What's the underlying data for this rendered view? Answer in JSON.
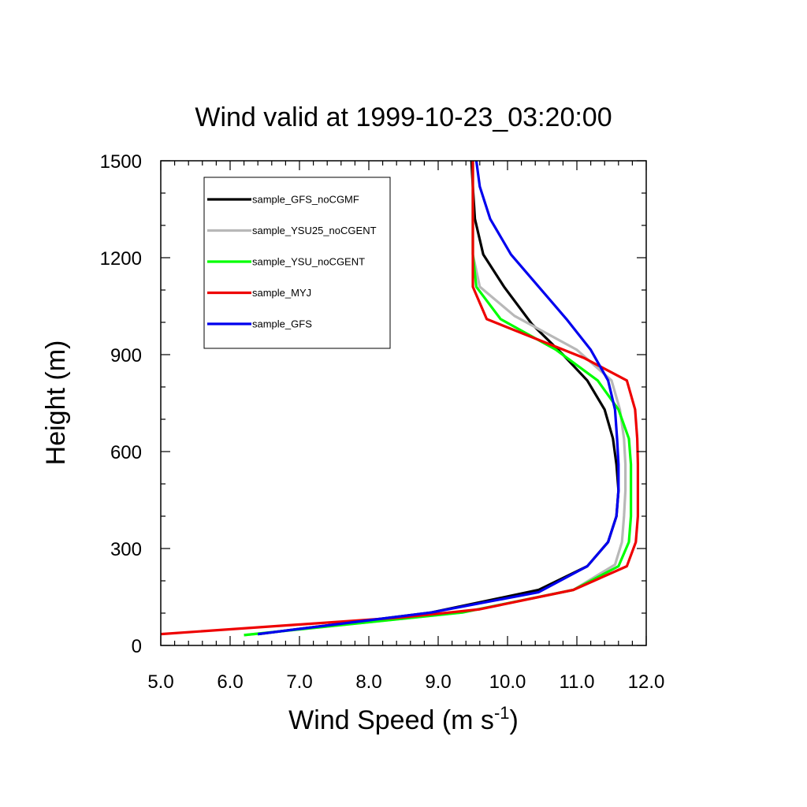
{
  "chart_data": {
    "type": "line",
    "title": "Wind valid at 1999-10-23_03:20:00",
    "xlabel": "Wind Speed (m s",
    "xlabel_superscript": "-1",
    "xlabel_suffix": ")",
    "ylabel": "Height (m)",
    "xlim": [
      5.0,
      12.0
    ],
    "ylim": [
      0,
      1500
    ],
    "x_ticks": [
      "5.0",
      "6.0",
      "7.0",
      "8.0",
      "9.0",
      "10.0",
      "11.0",
      "12.0"
    ],
    "y_ticks": [
      "0",
      "300",
      "600",
      "900",
      "1200",
      "1500"
    ],
    "grid": false,
    "legend_position": "top-left",
    "series": [
      {
        "name": "sample_GFS_noCGMF",
        "color": "#000000",
        "points": [
          [
            6.4,
            35
          ],
          [
            8.9,
            102
          ],
          [
            10.45,
            172
          ],
          [
            11.15,
            245
          ],
          [
            11.45,
            320
          ],
          [
            11.57,
            400
          ],
          [
            11.6,
            480
          ],
          [
            11.57,
            560
          ],
          [
            11.52,
            640
          ],
          [
            11.4,
            730
          ],
          [
            11.15,
            820
          ],
          [
            10.8,
            900
          ],
          [
            10.35,
            995
          ],
          [
            9.95,
            1110
          ],
          [
            9.65,
            1210
          ],
          [
            9.53,
            1320
          ],
          [
            9.5,
            1420
          ],
          [
            9.48,
            1500
          ]
        ]
      },
      {
        "name": "sample_YSU25_noCGENT",
        "color": "#b8b8b8",
        "points": [
          [
            6.2,
            32
          ],
          [
            9.35,
            102
          ],
          [
            10.95,
            172
          ],
          [
            11.55,
            250
          ],
          [
            11.65,
            320
          ],
          [
            11.68,
            400
          ],
          [
            11.7,
            480
          ],
          [
            11.7,
            560
          ],
          [
            11.68,
            640
          ],
          [
            11.62,
            730
          ],
          [
            11.5,
            820
          ],
          [
            11.0,
            915
          ],
          [
            10.1,
            1020
          ],
          [
            9.6,
            1110
          ],
          [
            9.5,
            1210
          ],
          [
            9.5,
            1320
          ],
          [
            9.5,
            1420
          ],
          [
            9.5,
            1500
          ]
        ]
      },
      {
        "name": "sample_YSU_noCGENT",
        "color": "#00ff00",
        "points": [
          [
            6.2,
            32
          ],
          [
            9.35,
            102
          ],
          [
            10.95,
            172
          ],
          [
            11.6,
            245
          ],
          [
            11.75,
            320
          ],
          [
            11.78,
            400
          ],
          [
            11.78,
            480
          ],
          [
            11.78,
            560
          ],
          [
            11.75,
            640
          ],
          [
            11.6,
            730
          ],
          [
            11.3,
            820
          ],
          [
            10.7,
            915
          ],
          [
            9.9,
            1010
          ],
          [
            9.55,
            1110
          ],
          [
            9.5,
            1210
          ],
          [
            9.5,
            1320
          ],
          [
            9.5,
            1420
          ],
          [
            9.5,
            1500
          ]
        ]
      },
      {
        "name": "sample_MYJ",
        "color": "#ee0000",
        "points": [
          [
            5.0,
            35
          ],
          [
            8.5,
            87
          ],
          [
            9.6,
            112
          ],
          [
            10.95,
            172
          ],
          [
            11.72,
            245
          ],
          [
            11.85,
            320
          ],
          [
            11.88,
            400
          ],
          [
            11.88,
            480
          ],
          [
            11.88,
            560
          ],
          [
            11.87,
            640
          ],
          [
            11.84,
            730
          ],
          [
            11.72,
            820
          ],
          [
            11.1,
            890
          ],
          [
            9.7,
            1010
          ],
          [
            9.5,
            1110
          ],
          [
            9.5,
            1210
          ],
          [
            9.5,
            1320
          ],
          [
            9.5,
            1420
          ],
          [
            9.5,
            1500
          ]
        ]
      },
      {
        "name": "sample_GFS",
        "color": "#0000ee",
        "points": [
          [
            6.4,
            35
          ],
          [
            8.9,
            102
          ],
          [
            10.45,
            165
          ],
          [
            11.15,
            245
          ],
          [
            11.45,
            320
          ],
          [
            11.57,
            400
          ],
          [
            11.6,
            480
          ],
          [
            11.6,
            560
          ],
          [
            11.58,
            640
          ],
          [
            11.55,
            730
          ],
          [
            11.45,
            820
          ],
          [
            11.2,
            915
          ],
          [
            10.85,
            1010
          ],
          [
            10.45,
            1110
          ],
          [
            10.05,
            1210
          ],
          [
            9.75,
            1320
          ],
          [
            9.6,
            1420
          ],
          [
            9.55,
            1500
          ]
        ]
      }
    ]
  }
}
